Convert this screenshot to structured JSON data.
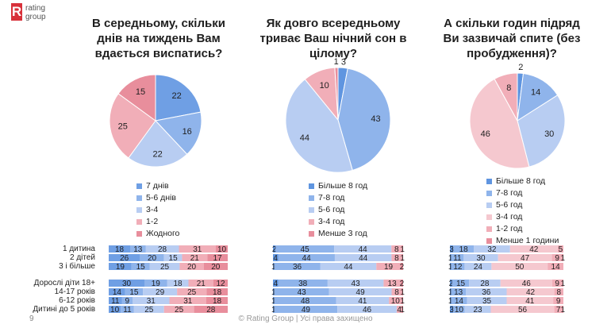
{
  "brand": {
    "mark": "R",
    "line1": "rating",
    "line2": "group"
  },
  "footer": {
    "page": "9",
    "copyright": "© Rating Group | Усі права захищено"
  },
  "row_labels": [
    "1 дитина",
    "2 дітей",
    "3 і більше",
    "Дорослі діти 18+",
    "14-17 років",
    "6-12 років",
    "Дитині до 5 років"
  ],
  "chart_data": [
    {
      "type": "pie",
      "title_lines": [
        "В середньому, скільки",
        "днів на тиждень Вам",
        "вдається виспатись?"
      ],
      "legend": [
        "7 днів",
        "5-6 днів",
        "3-4",
        "1-2",
        "Жодного"
      ],
      "colors": [
        "#6f9fe4",
        "#8fb4eb",
        "#b8cdf2",
        "#f1aeb8",
        "#e88e9c"
      ],
      "values": [
        22,
        16,
        22,
        25,
        15
      ],
      "rows": [
        [
          18,
          13,
          28,
          31,
          10
        ],
        [
          26,
          20,
          15,
          21,
          17
        ],
        [
          19,
          15,
          25,
          20,
          20
        ],
        [
          30,
          19,
          18,
          21,
          12
        ],
        [
          14,
          15,
          29,
          25,
          18
        ],
        [
          11,
          9,
          31,
          31,
          18
        ],
        [
          10,
          11,
          25,
          25,
          28
        ]
      ]
    },
    {
      "type": "pie",
      "title_lines": [
        "Як довго всередньому",
        "триває Ваш нічний сон в",
        "цілому?"
      ],
      "legend": [
        "Більше 8 год",
        "7-8 год",
        "5-6 год",
        "3-4 год",
        "Менше 3 год"
      ],
      "colors": [
        "#5f95e0",
        "#8fb4eb",
        "#b8cdf2",
        "#f1aeb8",
        "#e88e9c"
      ],
      "values": [
        3,
        43,
        44,
        10,
        1
      ],
      "rows": [
        [
          2,
          45,
          44,
          8,
          1
        ],
        [
          4,
          44,
          44,
          8,
          1
        ],
        [
          1,
          36,
          44,
          19,
          2
        ],
        [
          4,
          38,
          43,
          13,
          2
        ],
        [
          1,
          43,
          49,
          8,
          1
        ],
        [
          1,
          48,
          41,
          10,
          1
        ],
        [
          1,
          49,
          46,
          4,
          1
        ]
      ]
    },
    {
      "type": "pie",
      "title_lines": [
        "А скільки годин підряд",
        "Ви зазвичай спите (без",
        "пробудження)?"
      ],
      "legend": [
        "Більше 8 год",
        "7-8 год",
        "5-6 год",
        "3-4 год",
        "1-2 год",
        "Менше 1 години"
      ],
      "colors": [
        "#5f95e0",
        "#8fb4eb",
        "#b8cdf2",
        "#f5c8cf",
        "#f1aeb8",
        "#e88e9c"
      ],
      "values": [
        2,
        14,
        30,
        46,
        8,
        0
      ],
      "rows": [
        [
          3,
          18,
          32,
          42,
          5,
          0
        ],
        [
          1,
          11,
          30,
          47,
          9,
          1
        ],
        [
          1,
          12,
          24,
          50,
          14,
          0
        ],
        [
          2,
          15,
          28,
          46,
          9,
          1
        ],
        [
          1,
          13,
          36,
          42,
          8,
          0
        ],
        [
          1,
          14,
          35,
          41,
          9,
          0
        ],
        [
          3,
          10,
          23,
          56,
          7,
          1
        ]
      ]
    }
  ]
}
